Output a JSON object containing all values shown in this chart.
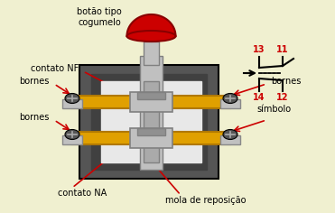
{
  "bg_color": "#f0f0d0",
  "dark_gray": "#555555",
  "mid_gray": "#808080",
  "light_gray": "#c0c0c0",
  "gold": "#e0a000",
  "dark_gold": "#b07800",
  "red": "#cc0000",
  "black": "#000000",
  "white": "#ffffff",
  "cream": "#e8e8e8",
  "labels": {
    "botao": "botão tipo\ncogumelo",
    "contato_nf": "contato NF",
    "bornes_left": "bornes",
    "bornes_right": "bornes",
    "contato_na": "contato NA",
    "mola": "mola de reposição",
    "simbolo": "símbolo"
  }
}
